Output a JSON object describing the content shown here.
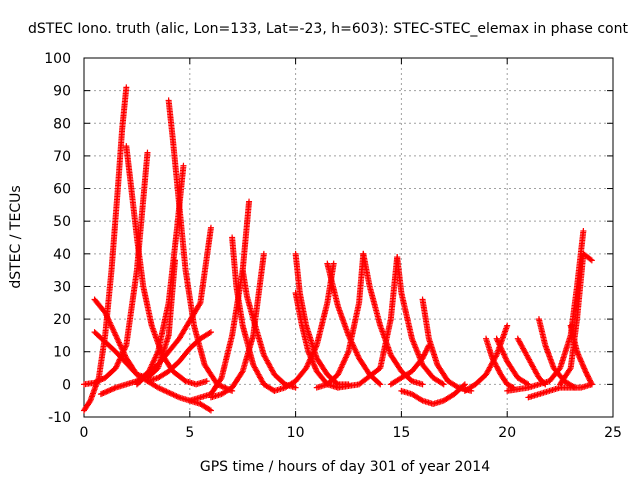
{
  "chart_data": {
    "type": "scatter",
    "title": "dSTEC Iono. truth (alic, Lon=133, Lat=-23, h=603): STEC-STEC_elemax in phase cont",
    "xlabel": "GPS time / hours of day 301 of year 2014",
    "ylabel": "dSTEC  / TECUs",
    "xlim": [
      0,
      25
    ],
    "ylim": [
      -10,
      100
    ],
    "x_ticks": [
      "0",
      "5",
      "10",
      "15",
      "20",
      "25"
    ],
    "y_ticks": [
      "-10",
      "0",
      "10",
      "20",
      "30",
      "40",
      "50",
      "60",
      "70",
      "80",
      "90",
      "100"
    ],
    "grid": true,
    "marker": "plus",
    "color": "#ff0000",
    "series": [
      {
        "x": [
          0.0,
          0.3,
          0.7,
          1.0,
          1.3,
          1.6,
          1.8,
          2.0
        ],
        "y": [
          -8,
          -5,
          2,
          15,
          35,
          60,
          78,
          91
        ]
      },
      {
        "x": [
          2.0,
          2.2,
          2.5,
          2.8,
          3.2,
          3.7,
          4.2,
          4.8,
          5.3,
          5.8
        ],
        "y": [
          73,
          62,
          45,
          30,
          18,
          9,
          4,
          1,
          0,
          1
        ]
      },
      {
        "x": [
          0.0,
          0.5,
          1.0,
          1.5,
          2.0,
          2.5,
          3.0
        ],
        "y": [
          0,
          0.5,
          2,
          5,
          12,
          35,
          71
        ]
      },
      {
        "x": [
          0.5,
          1.0,
          1.5,
          2.0,
          2.5,
          3.0,
          3.5,
          4.0,
          4.3
        ],
        "y": [
          26,
          22,
          15,
          8,
          3,
          2,
          5,
          15,
          38
        ]
      },
      {
        "x": [
          0.8,
          1.5,
          2.5,
          3.5,
          4.5,
          5.5,
          6.0
        ],
        "y": [
          -3,
          -1,
          1,
          6,
          14,
          25,
          48
        ]
      },
      {
        "x": [
          4.0,
          4.2,
          4.5,
          4.8,
          5.2,
          5.7,
          6.3,
          7.0
        ],
        "y": [
          87,
          75,
          55,
          35,
          18,
          6,
          0,
          -2
        ]
      },
      {
        "x": [
          2.5,
          3.0,
          3.5,
          4.0,
          4.4,
          4.7
        ],
        "y": [
          0,
          3,
          10,
          25,
          48,
          67
        ]
      },
      {
        "x": [
          0.5,
          1.5,
          2.5,
          3.5,
          4.5,
          5.5,
          6.0
        ],
        "y": [
          16,
          10,
          3,
          -1,
          -4,
          -6,
          -8
        ]
      },
      {
        "x": [
          3.0,
          3.5,
          4.0,
          4.5,
          5.0,
          5.5,
          6.0
        ],
        "y": [
          1,
          2,
          4,
          7,
          11,
          14,
          16
        ]
      },
      {
        "x": [
          5.0,
          5.5,
          6.0,
          6.5,
          7.0,
          7.5,
          7.8
        ],
        "y": [
          -5,
          -4,
          -3,
          2,
          15,
          35,
          56
        ]
      },
      {
        "x": [
          7.0,
          7.2,
          7.5,
          8.0,
          8.5,
          9.0
        ],
        "y": [
          45,
          30,
          18,
          6,
          0,
          -2
        ]
      },
      {
        "x": [
          6.0,
          6.5,
          7.0,
          7.5,
          8.0,
          8.3,
          8.5
        ],
        "y": [
          -4,
          -3,
          -1,
          4,
          15,
          30,
          40
        ]
      },
      {
        "x": [
          7.5,
          7.7,
          8.0,
          8.5,
          9.0,
          9.5,
          10.0
        ],
        "y": [
          35,
          27,
          20,
          9,
          3,
          0,
          -1
        ]
      },
      {
        "x": [
          10.0,
          10.2,
          10.5,
          11.0,
          11.5,
          12.0,
          12.5
        ],
        "y": [
          40,
          28,
          18,
          8,
          3,
          0,
          0
        ]
      },
      {
        "x": [
          9.0,
          9.5,
          10.0,
          10.5,
          11.0,
          11.5,
          11.8
        ],
        "y": [
          -2,
          -1,
          1,
          5,
          12,
          25,
          37
        ]
      },
      {
        "x": [
          10.0,
          10.3,
          10.6,
          11.0,
          11.5,
          12.0
        ],
        "y": [
          28,
          18,
          10,
          4,
          0,
          -1
        ]
      },
      {
        "x": [
          11.5,
          12.0,
          12.5,
          13.0,
          13.5,
          14.0
        ],
        "y": [
          37,
          24,
          15,
          8,
          3,
          0
        ]
      },
      {
        "x": [
          11.0,
          11.5,
          12.0,
          12.5,
          13.0,
          13.2
        ],
        "y": [
          -1,
          0,
          3,
          10,
          25,
          40
        ]
      },
      {
        "x": [
          13.2,
          13.5,
          14.0,
          14.5,
          15.0,
          15.5,
          16.0
        ],
        "y": [
          40,
          30,
          18,
          9,
          4,
          1,
          0
        ]
      },
      {
        "x": [
          12.0,
          13.0,
          14.0,
          14.5,
          14.8
        ],
        "y": [
          -1,
          0,
          5,
          20,
          39
        ]
      },
      {
        "x": [
          14.8,
          15.0,
          15.5,
          16.0,
          16.5,
          17.0
        ],
        "y": [
          39,
          28,
          14,
          6,
          2,
          0
        ]
      },
      {
        "x": [
          15.0,
          15.5,
          16.0,
          16.5,
          17.0,
          17.5,
          18.0
        ],
        "y": [
          -2,
          -3,
          -5,
          -6,
          -5,
          -3,
          0
        ]
      },
      {
        "x": [
          16.0,
          16.3,
          16.7,
          17.2,
          17.7,
          18.3
        ],
        "y": [
          26,
          14,
          6,
          1,
          -1,
          -2
        ]
      },
      {
        "x": [
          14.5,
          15.0,
          15.5,
          16.0,
          16.3
        ],
        "y": [
          0,
          2,
          4,
          8,
          12
        ]
      },
      {
        "x": [
          19.0,
          19.3,
          19.7,
          20.0,
          20.3
        ],
        "y": [
          14,
          8,
          3,
          0,
          -1
        ]
      },
      {
        "x": [
          18.0,
          18.5,
          19.0,
          19.5,
          20.0
        ],
        "y": [
          -2,
          0,
          3,
          9,
          18
        ]
      },
      {
        "x": [
          19.5,
          20.0,
          20.5,
          21.0
        ],
        "y": [
          14,
          7,
          2,
          0
        ]
      },
      {
        "x": [
          20.5,
          21.0,
          21.5,
          21.8
        ],
        "y": [
          14,
          8,
          2,
          0
        ]
      },
      {
        "x": [
          21.5,
          21.8,
          22.2,
          22.7,
          23.2
        ],
        "y": [
          20,
          12,
          5,
          1,
          -1
        ]
      },
      {
        "x": [
          20.0,
          21.0,
          22.0,
          22.5,
          23.0,
          23.3,
          23.6
        ],
        "y": [
          -2,
          -1,
          1,
          5,
          15,
          30,
          47
        ]
      },
      {
        "x": [
          22.5,
          23.0,
          23.3,
          23.6,
          24.0
        ],
        "y": [
          0,
          5,
          20,
          40,
          38
        ]
      },
      {
        "x": [
          23.0,
          23.3,
          23.7,
          24.0
        ],
        "y": [
          18,
          10,
          4,
          0
        ]
      },
      {
        "x": [
          21.0,
          21.5,
          22.0,
          22.5,
          23.0,
          23.5,
          24.0
        ],
        "y": [
          -4,
          -3,
          -2,
          -1,
          -1,
          -1,
          0
        ]
      }
    ]
  }
}
